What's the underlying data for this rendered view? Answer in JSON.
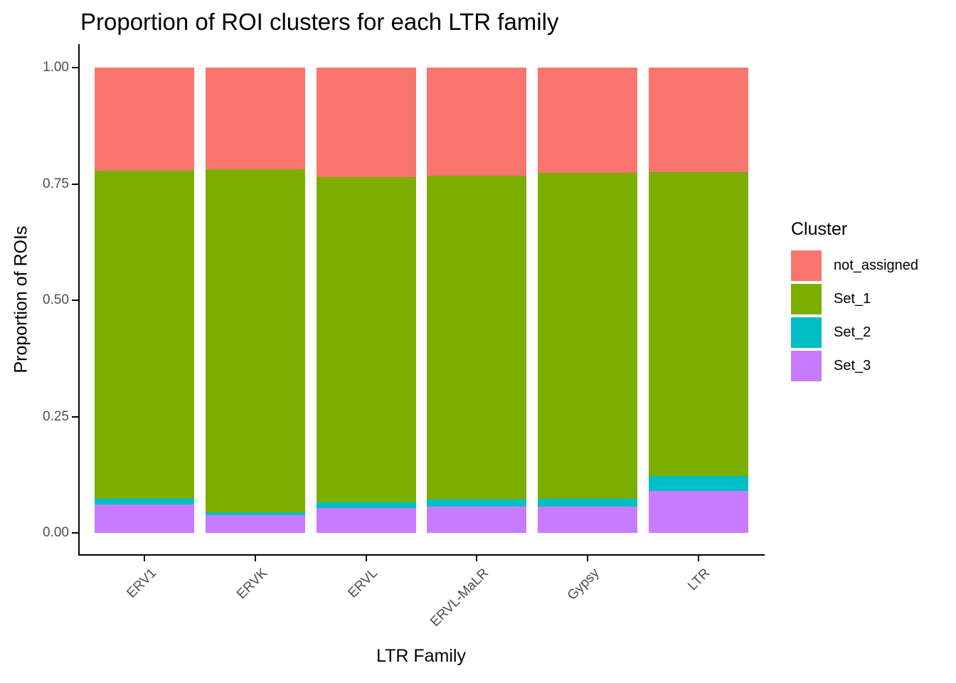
{
  "title": "Proportion of ROI clusters for each LTR family",
  "axes": {
    "x_label": "LTR Family",
    "y_label": "Proportion of ROIs",
    "y_ticks": [
      {
        "value": 1.0,
        "label": "1.00"
      },
      {
        "value": 0.75,
        "label": "0.75"
      },
      {
        "value": 0.5,
        "label": "0.50"
      },
      {
        "value": 0.25,
        "label": "0.25"
      },
      {
        "value": 0.0,
        "label": "0.00"
      }
    ]
  },
  "legend": {
    "title": "Cluster",
    "entries": [
      {
        "label": "not_assigned",
        "color": "#F8766D"
      },
      {
        "label": "Set_1",
        "color": "#7CAE00"
      },
      {
        "label": "Set_2",
        "color": "#00BFC4"
      },
      {
        "label": "Set_3",
        "color": "#C77CFF"
      }
    ]
  },
  "colors": {
    "axis_line": "#000000",
    "tick_label": "#4D4D4D",
    "background": "#FFFFFF",
    "not_assigned": "#F8766D",
    "set_1": "#7CAE00",
    "set_2": "#00BFC4",
    "set_3": "#C77CFF"
  },
  "chart_data": {
    "type": "bar",
    "stacked": true,
    "title": "Proportion of ROI clusters for each LTR family",
    "xlabel": "LTR Family",
    "ylabel": "Proportion of ROIs",
    "ylim": [
      0,
      1
    ],
    "y_tick_values": [
      0,
      0.25,
      0.5,
      0.75,
      1.0
    ],
    "grid": false,
    "legend_position": "right",
    "legend_title": "Cluster",
    "categories": [
      "ERV1",
      "ERVK",
      "ERVL",
      "ERVL-MaLR",
      "Gypsy",
      "LTR"
    ],
    "stack_order_bottom_to_top": [
      "Set_3",
      "Set_2",
      "Set_1",
      "not_assigned"
    ],
    "series": [
      {
        "name": "Set_3",
        "color": "#C77CFF",
        "values": [
          0.061,
          0.038,
          0.053,
          0.057,
          0.056,
          0.091
        ]
      },
      {
        "name": "Set_2",
        "color": "#00BFC4",
        "values": [
          0.012,
          0.007,
          0.013,
          0.015,
          0.017,
          0.032
        ]
      },
      {
        "name": "Set_1",
        "color": "#7CAE00",
        "values": [
          0.705,
          0.737,
          0.698,
          0.695,
          0.7,
          0.653
        ]
      },
      {
        "name": "not_assigned",
        "color": "#F8766D",
        "values": [
          0.222,
          0.218,
          0.236,
          0.233,
          0.227,
          0.224
        ]
      }
    ]
  }
}
